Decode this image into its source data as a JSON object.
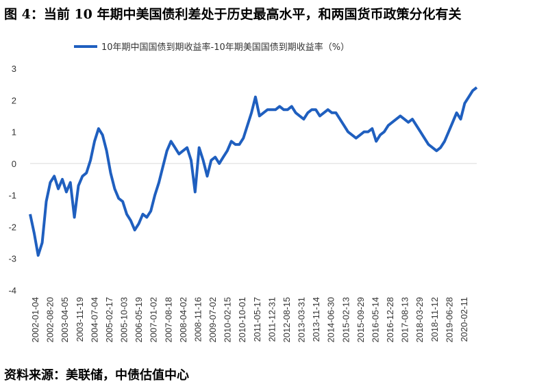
{
  "title": "图 4：当前 10 年期中美国债利差处于历史最高水平，和两国货币政策分化有关",
  "source": "资料来源：美联储，中债估值中心",
  "chart_data": {
    "type": "line",
    "ylim": [
      -4,
      3
    ],
    "yticks": [
      "3",
      "2",
      "1",
      "0",
      "-1",
      "-2",
      "-3",
      "-4"
    ],
    "xlabels": [
      "2002-01-04",
      "2002-08-20",
      "2003-04-05",
      "2003-11-19",
      "2004-07-04",
      "2005-02-17",
      "2005-10-03",
      "2006-05-19",
      "2007-01-02",
      "2007-08-18",
      "2008-04-02",
      "2008-11-16",
      "2009-07-02",
      "2010-02-15",
      "2010-10-01",
      "2011-05-17",
      "2011-12-31",
      "2012-08-15",
      "2013-03-31",
      "2013-11-14",
      "2014-06-30",
      "2015-02-13",
      "2015-09-29",
      "2016-05-14",
      "2016-12-28",
      "2017-08-13",
      "2018-03-29",
      "2018-11-12",
      "2019-06-28",
      "2020-02-11"
    ],
    "color": "#1f5fbf",
    "series": [
      {
        "name": "10年期中国国债到期收益率-10年期美国国债到期收益率（%）",
        "x": [
          "2002-01",
          "2002-03",
          "2002-05",
          "2002-07",
          "2002-09",
          "2002-11",
          "2003-01",
          "2003-03",
          "2003-05",
          "2003-07",
          "2003-09",
          "2003-11",
          "2004-01",
          "2004-03",
          "2004-05",
          "2004-07",
          "2004-09",
          "2004-11",
          "2005-01",
          "2005-03",
          "2005-05",
          "2005-07",
          "2005-09",
          "2005-11",
          "2006-01",
          "2006-03",
          "2006-05",
          "2006-07",
          "2006-09",
          "2006-11",
          "2007-01",
          "2007-03",
          "2007-05",
          "2007-07",
          "2007-09",
          "2007-11",
          "2008-01",
          "2008-03",
          "2008-05",
          "2008-07",
          "2008-09",
          "2008-11",
          "2009-01",
          "2009-03",
          "2009-05",
          "2009-07",
          "2009-09",
          "2009-11",
          "2010-01",
          "2010-03",
          "2010-05",
          "2010-07",
          "2010-09",
          "2010-11",
          "2011-01",
          "2011-03",
          "2011-05",
          "2011-07",
          "2011-09",
          "2011-11",
          "2012-01",
          "2012-03",
          "2012-05",
          "2012-07",
          "2012-09",
          "2012-11",
          "2013-01",
          "2013-03",
          "2013-05",
          "2013-07",
          "2013-09",
          "2013-11",
          "2014-01",
          "2014-03",
          "2014-05",
          "2014-07",
          "2014-09",
          "2014-11",
          "2015-01",
          "2015-03",
          "2015-05",
          "2015-07",
          "2015-09",
          "2015-11",
          "2016-01",
          "2016-03",
          "2016-05",
          "2016-07",
          "2016-09",
          "2016-11",
          "2017-01",
          "2017-03",
          "2017-05",
          "2017-07",
          "2017-09",
          "2017-11",
          "2018-01",
          "2018-03",
          "2018-05",
          "2018-07",
          "2018-09",
          "2018-11",
          "2019-01",
          "2019-03",
          "2019-05",
          "2019-07",
          "2019-09",
          "2019-11",
          "2020-01",
          "2020-03",
          "2020-05",
          "2020-07"
        ],
        "values": [
          -1.6,
          -2.2,
          -2.9,
          -2.5,
          -1.2,
          -0.6,
          -0.4,
          -0.8,
          -0.5,
          -0.9,
          -0.6,
          -1.7,
          -0.7,
          -0.4,
          -0.3,
          0.1,
          0.7,
          1.1,
          0.9,
          0.4,
          -0.3,
          -0.8,
          -1.1,
          -1.2,
          -1.6,
          -1.8,
          -2.1,
          -1.9,
          -1.6,
          -1.7,
          -1.5,
          -1.0,
          -0.6,
          -0.1,
          0.4,
          0.7,
          0.5,
          0.3,
          0.4,
          0.5,
          0.1,
          -0.9,
          0.5,
          0.1,
          -0.4,
          0.1,
          0.2,
          0.0,
          0.2,
          0.4,
          0.7,
          0.6,
          0.6,
          0.8,
          1.2,
          1.6,
          2.1,
          1.5,
          1.6,
          1.7,
          1.7,
          1.7,
          1.8,
          1.7,
          1.7,
          1.8,
          1.6,
          1.5,
          1.4,
          1.6,
          1.7,
          1.7,
          1.5,
          1.6,
          1.7,
          1.6,
          1.6,
          1.4,
          1.2,
          1.0,
          0.9,
          0.8,
          0.9,
          1.0,
          1.0,
          1.1,
          0.7,
          0.9,
          1.0,
          1.2,
          1.3,
          1.4,
          1.5,
          1.4,
          1.3,
          1.4,
          1.2,
          1.0,
          0.8,
          0.6,
          0.5,
          0.4,
          0.5,
          0.7,
          1.0,
          1.3,
          1.6,
          1.4,
          1.9,
          2.1,
          2.3,
          2.4
        ]
      }
    ]
  }
}
